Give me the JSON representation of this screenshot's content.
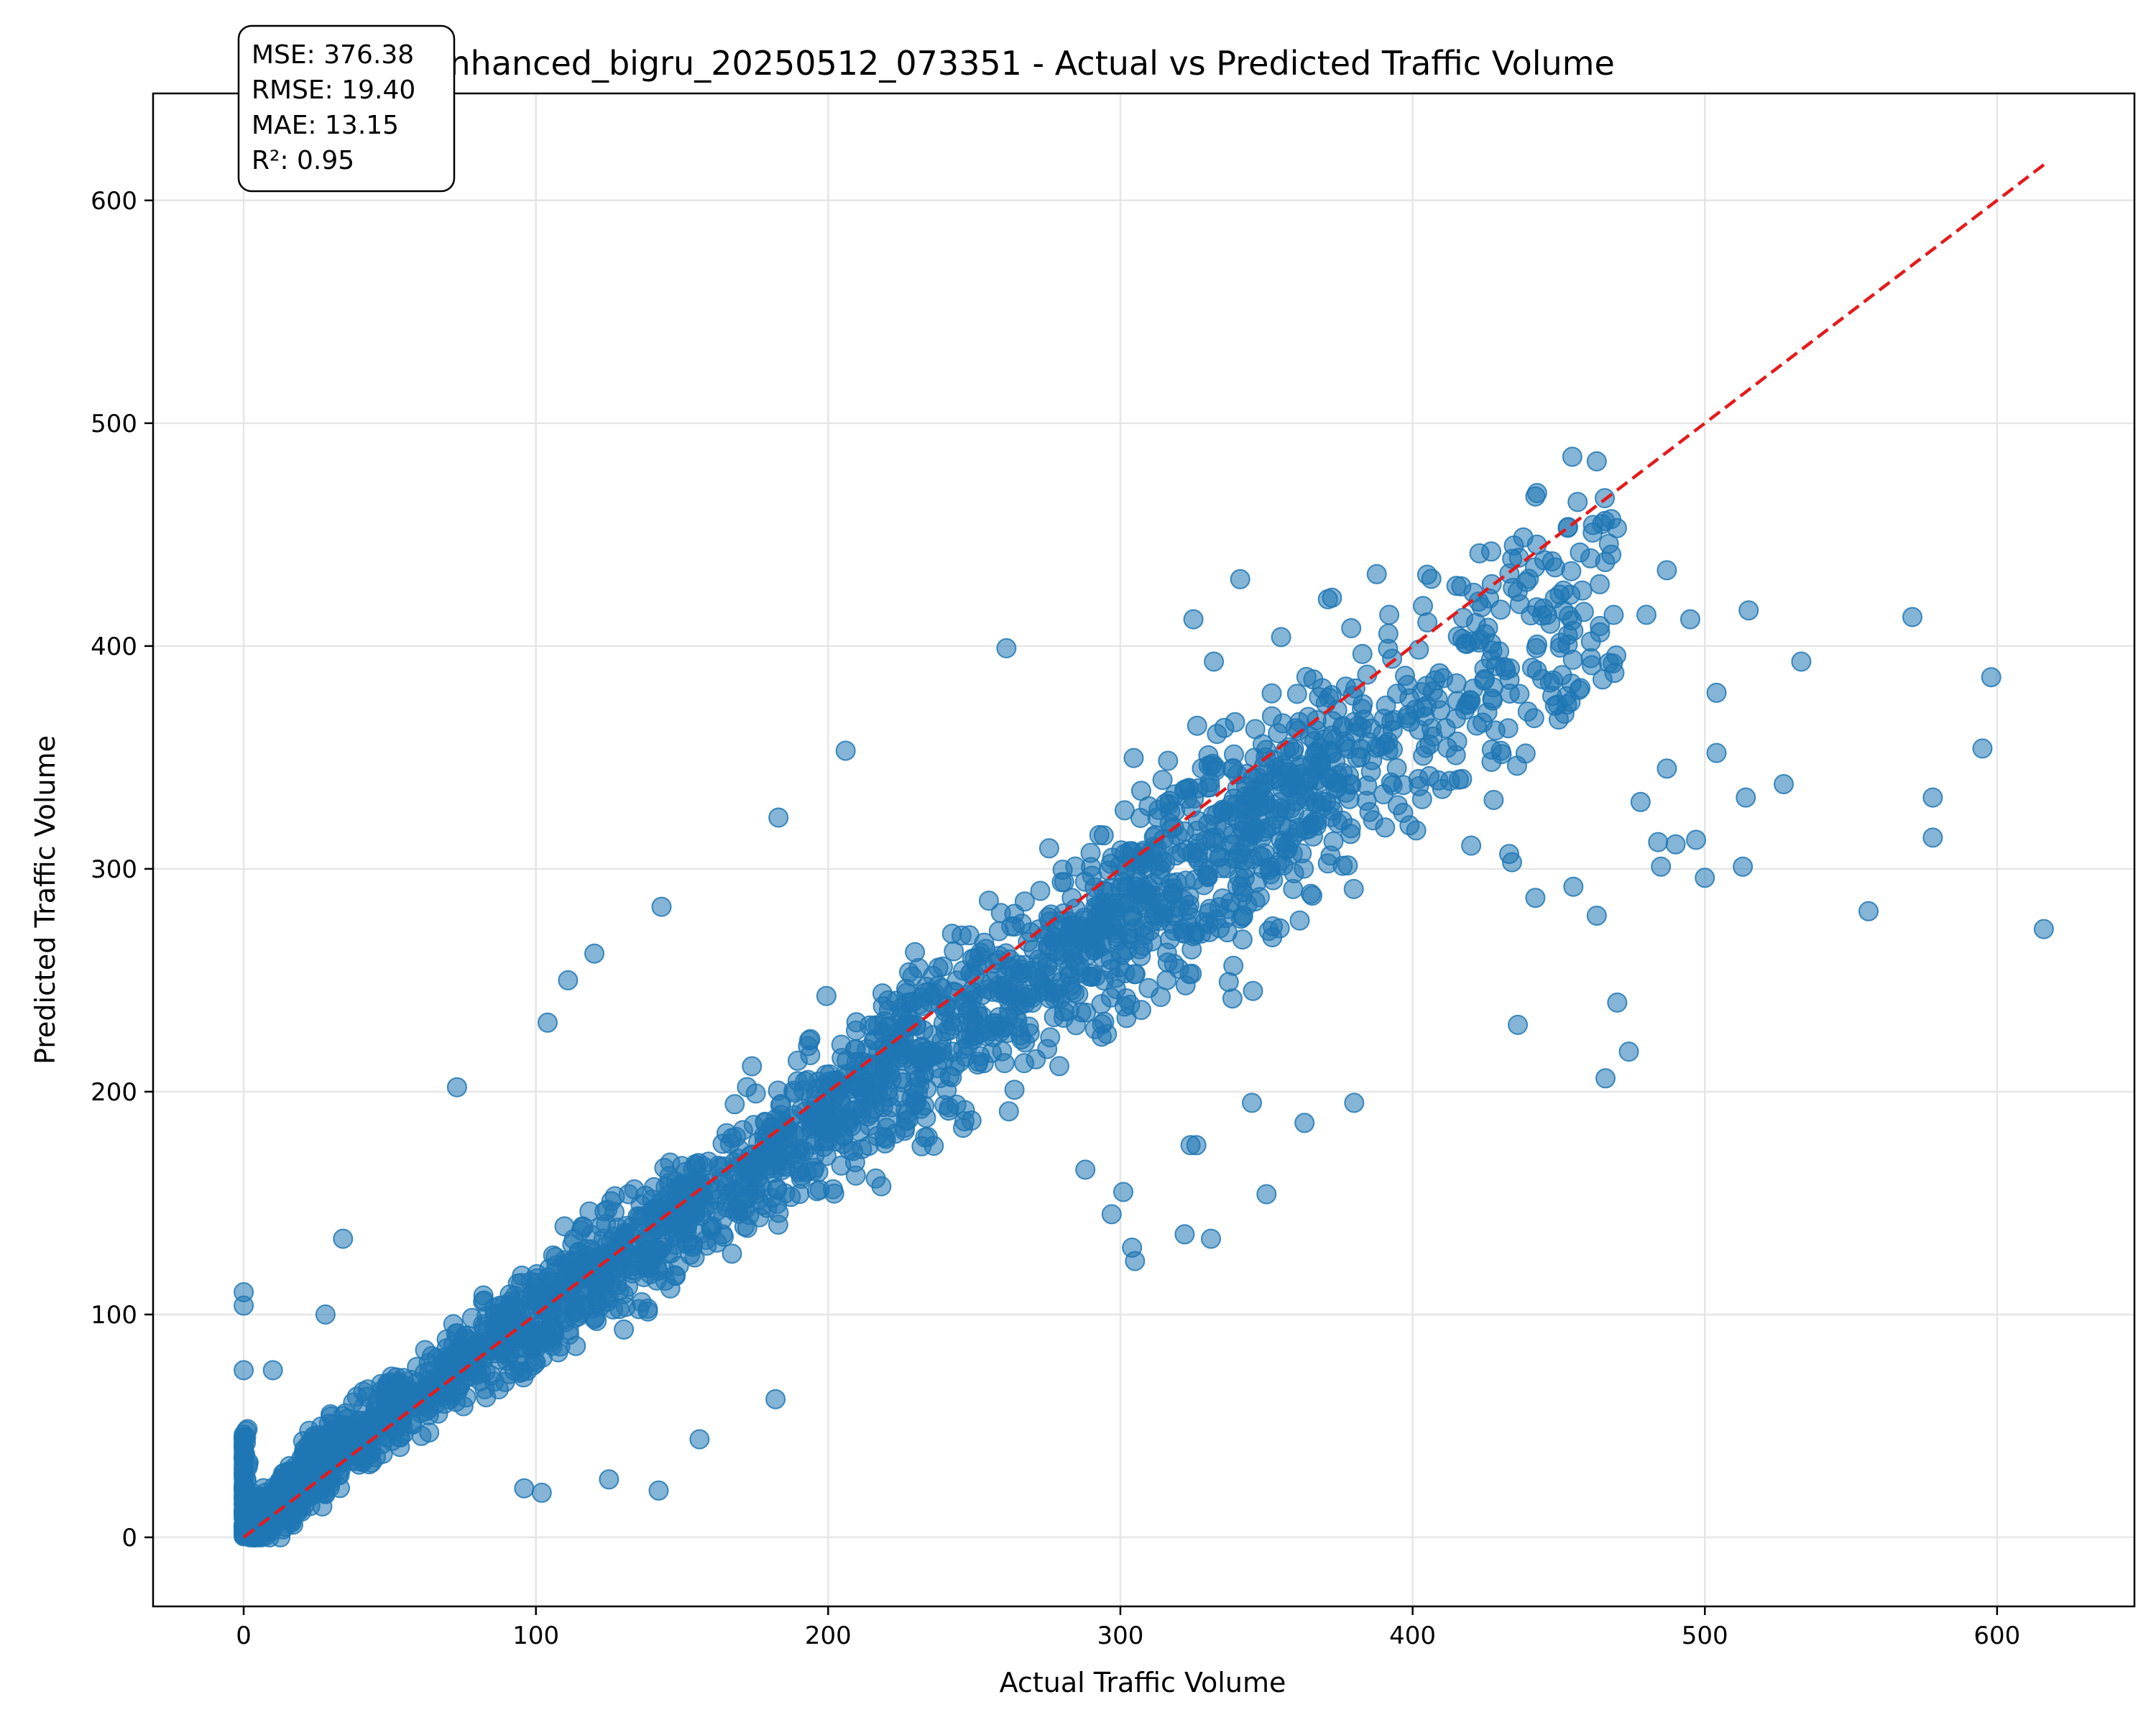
{
  "chart_data": {
    "type": "scatter",
    "title": "enhanced_bigru_20250512_073351 - Actual vs Predicted Traffic Volume",
    "xlabel": "Actual Traffic Volume",
    "ylabel": "Predicted Traffic Volume",
    "xlim": [
      -31,
      647
    ],
    "ylim": [
      -31,
      648
    ],
    "xticks": [
      0,
      100,
      200,
      300,
      400,
      500,
      600
    ],
    "yticks": [
      0,
      100,
      200,
      300,
      400,
      500,
      600
    ],
    "grid": true,
    "point_color": "#1f77b4",
    "reference_line": {
      "from": [
        0,
        0
      ],
      "to": [
        616,
        616
      ],
      "color": "#e41a1c",
      "style": "dashed"
    },
    "stats": {
      "mse": "MSE: 376.38",
      "rmse": "RMSE: 19.40",
      "mae": "MAE: 13.15",
      "r2": "R²: 0.95"
    },
    "outliers": [
      [
        616,
        273
      ],
      [
        598,
        386
      ],
      [
        595,
        354
      ],
      [
        578,
        332
      ],
      [
        578,
        314
      ],
      [
        571,
        413
      ],
      [
        556,
        281
      ],
      [
        533,
        393
      ],
      [
        527,
        338
      ],
      [
        515,
        416
      ],
      [
        514,
        332
      ],
      [
        513,
        301
      ],
      [
        504,
        379
      ],
      [
        504,
        352
      ],
      [
        500,
        296
      ],
      [
        497,
        313
      ],
      [
        495,
        412
      ],
      [
        490,
        311
      ],
      [
        487,
        345
      ],
      [
        485,
        301
      ],
      [
        484,
        312
      ],
      [
        478,
        330
      ],
      [
        474,
        218
      ],
      [
        470,
        240
      ],
      [
        468,
        441
      ],
      [
        466,
        206
      ],
      [
        463,
        279
      ],
      [
        461,
        402
      ],
      [
        455,
        292
      ],
      [
        442,
        287
      ],
      [
        436,
        230
      ],
      [
        434,
        303
      ],
      [
        454,
        423
      ],
      [
        446,
        414
      ],
      [
        465,
        385
      ],
      [
        480,
        414
      ],
      [
        487,
        434
      ],
      [
        341,
        430
      ],
      [
        325,
        412
      ],
      [
        261,
        399
      ],
      [
        332,
        393
      ],
      [
        371,
        421
      ],
      [
        355,
        404
      ],
      [
        405,
        432
      ],
      [
        415,
        427
      ],
      [
        392,
        414
      ],
      [
        379,
        408
      ],
      [
        143,
        283
      ],
      [
        120,
        262
      ],
      [
        111,
        250
      ],
      [
        104,
        231
      ],
      [
        73,
        202
      ],
      [
        34,
        134
      ],
      [
        28,
        100
      ],
      [
        0,
        110
      ],
      [
        0,
        104
      ],
      [
        0,
        75
      ],
      [
        10,
        75
      ],
      [
        183,
        323
      ],
      [
        206,
        353
      ],
      [
        182,
        62
      ],
      [
        156,
        44
      ],
      [
        142,
        21
      ],
      [
        125,
        26
      ],
      [
        102,
        20
      ],
      [
        96,
        22
      ],
      [
        322,
        136
      ],
      [
        331,
        134
      ],
      [
        305,
        124
      ],
      [
        304,
        130
      ],
      [
        297,
        145
      ],
      [
        350,
        154
      ],
      [
        380,
        195
      ],
      [
        363,
        186
      ],
      [
        326,
        176
      ],
      [
        324,
        176
      ],
      [
        345,
        195
      ],
      [
        288,
        165
      ],
      [
        301,
        155
      ]
    ]
  }
}
